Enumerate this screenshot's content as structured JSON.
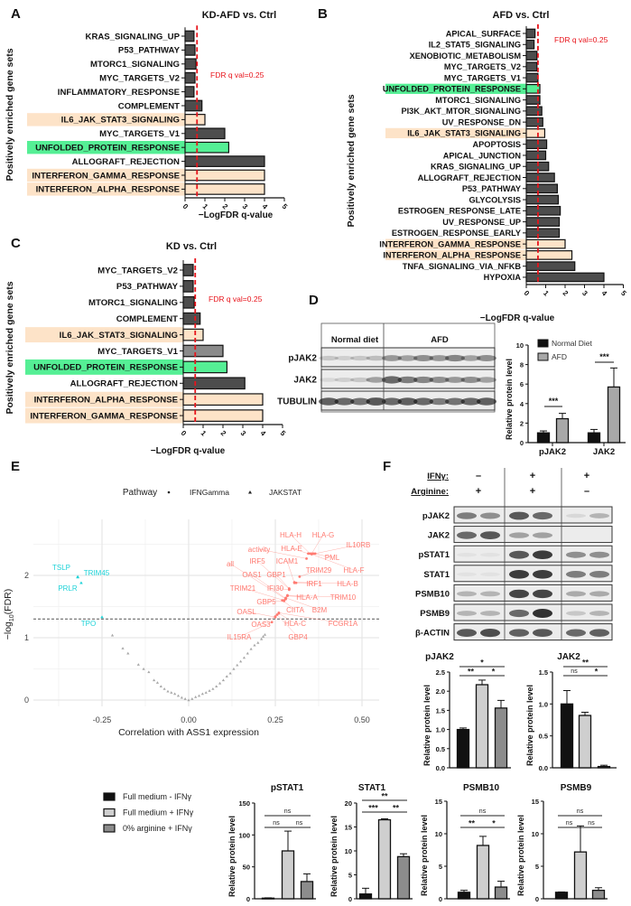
{
  "panel_labels": [
    "A",
    "B",
    "C",
    "D",
    "E",
    "F"
  ],
  "fdr_threshold_label": "FDR q val=0.25",
  "colors": {
    "bar": "#4d4d4d",
    "bar_light": "#8a8a8a",
    "highlight_orange": "#fde3c8",
    "highlight_green": "#55ef95",
    "threshold": "#e8141b",
    "ifng": "#ff7b72",
    "jakstat": "#1fd3d8",
    "gray_points": "#a8a8a8",
    "normal_diet": "#111111",
    "afd": "#a8a8a8",
    "f_group1": "#111111",
    "f_group2": "#cfcfcf",
    "f_group3": "#8c8c8c"
  },
  "chart_data": [
    {
      "id": "A",
      "type": "bar",
      "orientation": "horizontal",
      "title": "KD-AFD vs. Ctrl",
      "xlabel": "−LogFDR q-value",
      "ylabel": "Positively enriched gene sets",
      "xlim": [
        0,
        5
      ],
      "xticks": [
        "0",
        "1",
        "2",
        "3",
        "4",
        "5"
      ],
      "threshold": 0.602,
      "categories": [
        "KRAS_SIGNALING_UP",
        "P53_PATHWAY",
        "MTORC1_SIGNALING",
        "MYC_TARGETS_V2",
        "INFLAMMATORY_RESPONSE",
        "COMPLEMENT",
        "IL6_JAK_STAT3_SIGNALING",
        "MYC_TARGETS_V1",
        "UNFOLDED_PROTEIN_RESPONSE",
        "ALLOGRAFT_REJECTION",
        "INTERFERON_GAMMA_RESPONSE",
        "INTERFERON_ALPHA_RESPONSE"
      ],
      "values": [
        0.45,
        0.5,
        0.55,
        0.5,
        0.45,
        0.85,
        1.0,
        2.0,
        2.2,
        4.0,
        4.0,
        4.0
      ],
      "highlight": [
        "",
        "",
        "",
        "",
        "",
        "",
        "orange",
        "",
        "green",
        "",
        "orange",
        "orange"
      ]
    },
    {
      "id": "B",
      "type": "bar",
      "orientation": "horizontal",
      "title": "AFD vs. Ctrl",
      "xlabel": "−LogFDR q-value",
      "ylabel": "Positively enriched gene sets",
      "xlim": [
        0,
        5
      ],
      "xticks": [
        "0",
        "1",
        "2",
        "3",
        "4",
        "5"
      ],
      "threshold": 0.602,
      "categories": [
        "APICAL_SURFACE",
        "IL2_STAT5_SIGNALING",
        "XENOBIOTIC_METABOLISM",
        "MYC_TARGETS_V2",
        "MYC_TARGETS_V1",
        "UNFOLDED_PROTEIN_RESPONSE",
        "MTORC1_SIGNALING",
        "PI3K_AKT_MTOR_SIGNALING",
        "UV_RESPONSE_DN",
        "IL6_JAK_STAT3_SIGNALING",
        "APOPTOSIS",
        "APICAL_JUNCTION",
        "KRAS_SIGNALING_UP",
        "ALLOGRAFT_REJECTION",
        "P53_PATHWAY",
        "GLYCOLYSIS",
        "ESTROGEN_RESPONSE_LATE",
        "UV_RESPONSE_UP",
        "ESTROGEN_RESPONSE_EARLY",
        "INTERFERON_GAMMA_RESPONSE",
        "INTERFERON_ALPHA_RESPONSE",
        "TNFA_SIGNALING_VIA_NFKB",
        "HYPOXIA"
      ],
      "values": [
        0.45,
        0.4,
        0.55,
        0.55,
        0.6,
        0.7,
        0.7,
        0.8,
        0.85,
        0.95,
        1.05,
        1.0,
        1.15,
        1.45,
        1.6,
        1.65,
        1.75,
        1.7,
        1.7,
        2.0,
        2.35,
        2.5,
        4.0
      ],
      "highlight": [
        "",
        "",
        "",
        "",
        "",
        "green",
        "",
        "",
        "",
        "orange",
        "",
        "",
        "",
        "",
        "",
        "",
        "",
        "",
        "",
        "orange",
        "orange",
        "",
        ""
      ]
    },
    {
      "id": "C",
      "type": "bar",
      "orientation": "horizontal",
      "title": "KD vs. Ctrl",
      "xlabel": "−LogFDR q-value",
      "ylabel": "Positively enriched gene sets",
      "xlim": [
        0,
        5
      ],
      "xticks": [
        "0",
        "1",
        "2",
        "3",
        "4",
        "5"
      ],
      "threshold": 0.602,
      "categories": [
        "MYC_TARGETS_V2",
        "P53_PATHWAY",
        "MTORC1_SIGNALING",
        "COMPLEMENT",
        "IL6_JAK_STAT3_SIGNALING",
        "MYC_TARGETS_V1",
        "UNFOLDED_PROTEIN_RESPONSE",
        "ALLOGRAFT_REJECTION",
        "INTERFERON_ALPHA_RESPONSE",
        "INTERFERON_GAMMA_RESPONSE"
      ],
      "values": [
        0.5,
        0.5,
        0.55,
        0.85,
        1.0,
        2.0,
        2.2,
        3.1,
        4.0,
        4.0
      ],
      "highlight": [
        "",
        "",
        "",
        "",
        "orange",
        "light",
        "green",
        "",
        "orange",
        "orange"
      ]
    },
    {
      "id": "D",
      "type": "bar",
      "title": "",
      "ylabel": "Relative protein level",
      "categories": [
        "pJAK2",
        "JAK2"
      ],
      "ylim": [
        0,
        10
      ],
      "yticks": [
        "0",
        "2",
        "4",
        "6",
        "8",
        "10"
      ],
      "series": [
        {
          "name": "Normal Diet",
          "values": [
            1.0,
            1.0
          ],
          "errors": [
            0.2,
            0.35
          ]
        },
        {
          "name": "AFD",
          "values": [
            2.45,
            5.7
          ],
          "errors": [
            0.55,
            1.95
          ]
        }
      ],
      "significance": [
        {
          "category": "pJAK2",
          "label": "***"
        },
        {
          "category": "JAK2",
          "label": "***"
        }
      ]
    },
    {
      "id": "E",
      "type": "scatter",
      "xlabel": "Correlation with ASS1 expression",
      "ylabel_main": "−log",
      "ylabel_sub": "10",
      "ylabel_tail": "(FDR)",
      "legend_title": "Pathway",
      "legend": [
        "IFNGamma",
        "JAKSTAT"
      ],
      "xlim": [
        -0.4,
        0.55
      ],
      "ylim": [
        0,
        2.6
      ],
      "xticks": [
        "-0.25",
        "0.00",
        "0.25",
        "0.50"
      ],
      "xtick_values": [
        -0.25,
        0,
        0.25,
        0.5
      ],
      "yticks": [
        "0",
        "1",
        "2"
      ],
      "ytick_values": [
        0,
        1,
        2
      ],
      "threshold": 1.3,
      "labeled_points": [
        {
          "label": "TSLP",
          "x": -0.32,
          "y": 1.98,
          "pathway": "JAKSTAT"
        },
        {
          "label": "TRIM45",
          "x": -0.32,
          "y": 1.97,
          "pathway": "JAKSTAT"
        },
        {
          "label": "PRLR",
          "x": -0.31,
          "y": 1.88,
          "pathway": "JAKSTAT"
        },
        {
          "label": "TPO",
          "x": -0.25,
          "y": 1.33,
          "pathway": "JAKSTAT"
        },
        {
          "label": "HLA-H",
          "x": 0.35,
          "y": 2.35,
          "pathway": "IFNGamma"
        },
        {
          "label": "HLA-G",
          "x": 0.355,
          "y": 2.35,
          "pathway": "IFNGamma"
        },
        {
          "label": "IL10RB",
          "x": 0.365,
          "y": 2.35,
          "pathway": "IFNGamma"
        },
        {
          "label": "HLA-E",
          "x": 0.345,
          "y": 2.35,
          "pathway": "IFNGamma"
        },
        {
          "label": "PML",
          "x": 0.36,
          "y": 2.35,
          "pathway": "IFNGamma"
        },
        {
          "label": "HLA-F",
          "x": 0.355,
          "y": 2.34,
          "pathway": "IFNGamma"
        },
        {
          "label": "activity",
          "x": 0.34,
          "y": 2.27,
          "pathway": "IFNGamma"
        },
        {
          "label": "ICAM1",
          "x": 0.305,
          "y": 1.88,
          "pathway": "IFNGamma"
        },
        {
          "label": "IRF5",
          "x": 0.29,
          "y": 1.78,
          "pathway": "IFNGamma"
        },
        {
          "label": "all",
          "x": 0.28,
          "y": 1.62,
          "pathway": "IFNGamma"
        },
        {
          "label": "TRIM29",
          "x": 0.32,
          "y": 1.98,
          "pathway": "IFNGamma"
        },
        {
          "label": "GBP1",
          "x": 0.29,
          "y": 1.79,
          "pathway": "IFNGamma"
        },
        {
          "label": "OAS1",
          "x": 0.28,
          "y": 1.63,
          "pathway": "IFNGamma"
        },
        {
          "label": "IRF1",
          "x": 0.31,
          "y": 1.88,
          "pathway": "IFNGamma"
        },
        {
          "label": "HLA-B",
          "x": 0.305,
          "y": 1.89,
          "pathway": "IFNGamma"
        },
        {
          "label": "IFI30",
          "x": 0.29,
          "y": 1.77,
          "pathway": "IFNGamma"
        },
        {
          "label": "TRIM21",
          "x": 0.275,
          "y": 1.6,
          "pathway": "IFNGamma"
        },
        {
          "label": "TRIM10",
          "x": 0.285,
          "y": 1.68,
          "pathway": "IFNGamma"
        },
        {
          "label": "HLA-A",
          "x": 0.285,
          "y": 1.67,
          "pathway": "IFNGamma"
        },
        {
          "label": "GBP5",
          "x": 0.275,
          "y": 1.59,
          "pathway": "IFNGamma"
        },
        {
          "label": "CIITA",
          "x": 0.27,
          "y": 1.6,
          "pathway": "IFNGamma"
        },
        {
          "label": "B2M",
          "x": 0.28,
          "y": 1.64,
          "pathway": "IFNGamma"
        },
        {
          "label": "OASL",
          "x": 0.25,
          "y": 1.33,
          "pathway": "IFNGamma"
        },
        {
          "label": "FCGR1A",
          "x": 0.26,
          "y": 1.4,
          "pathway": "IFNGamma"
        },
        {
          "label": "HLA-C",
          "x": 0.26,
          "y": 1.39,
          "pathway": "IFNGamma"
        },
        {
          "label": "OAS3",
          "x": 0.25,
          "y": 1.34,
          "pathway": "IFNGamma"
        },
        {
          "label": "GBP4",
          "x": 0.255,
          "y": 1.37,
          "pathway": "IFNGamma"
        },
        {
          "label": "IL15RA",
          "x": 0.24,
          "y": 1.25,
          "pathway": "IFNGamma"
        }
      ],
      "other_points": {
        "x": [
          -0.22,
          -0.19,
          -0.175,
          -0.145,
          -0.13,
          -0.115,
          -0.1,
          -0.09,
          -0.08,
          -0.07,
          -0.06,
          -0.05,
          -0.04,
          -0.03,
          -0.02,
          -0.01,
          0.0,
          0.01,
          0.02,
          0.03,
          0.04,
          0.05,
          0.06,
          0.07,
          0.08,
          0.09,
          0.1,
          0.11,
          0.12,
          0.13,
          0.14,
          0.15,
          0.16,
          0.17,
          0.18,
          0.19,
          0.2,
          0.21,
          0.215,
          0.22
        ],
        "y": [
          1.04,
          0.83,
          0.75,
          0.57,
          0.5,
          0.45,
          0.32,
          0.28,
          0.22,
          0.18,
          0.14,
          0.12,
          0.1,
          0.07,
          0.04,
          0.02,
          0.0,
          0.02,
          0.05,
          0.07,
          0.1,
          0.12,
          0.15,
          0.18,
          0.22,
          0.27,
          0.32,
          0.38,
          0.43,
          0.5,
          0.56,
          0.62,
          0.68,
          0.75,
          0.82,
          0.88,
          0.92,
          0.98,
          1.02,
          1.05
        ]
      }
    },
    {
      "id": "F-pJAK2",
      "type": "bar",
      "title": "pJAK2",
      "ylabel": "Relative protein level",
      "ylim": [
        0,
        2.5
      ],
      "yticks": [
        "0.0",
        "0.5",
        "1.0",
        "1.5",
        "2.0",
        "2.5"
      ],
      "values": [
        1.0,
        2.17,
        1.56
      ],
      "errors": [
        0.04,
        0.12,
        0.2
      ],
      "significance": [
        {
          "pair": [
            0,
            1
          ],
          "label": "**"
        },
        {
          "pair": [
            1,
            2
          ],
          "label": "*"
        },
        {
          "pair": [
            0,
            2
          ],
          "label": "*"
        }
      ]
    },
    {
      "id": "F-JAK2",
      "type": "bar",
      "title": "JAK2",
      "ylabel": "Relative protein level",
      "ylim": [
        0,
        1.5
      ],
      "yticks": [
        "0.0",
        "0.5",
        "1.0",
        "1.5"
      ],
      "values": [
        1.0,
        0.82,
        0.02
      ],
      "errors": [
        0.21,
        0.05,
        0.02
      ],
      "significance": [
        {
          "pair": [
            0,
            1
          ],
          "label": "ns"
        },
        {
          "pair": [
            1,
            2
          ],
          "label": "*"
        },
        {
          "pair": [
            0,
            2
          ],
          "label": "**"
        }
      ]
    },
    {
      "id": "F-pSTAT1",
      "type": "bar",
      "title": "pSTAT1",
      "ylabel": "Relative protein level",
      "ylim": [
        0,
        150
      ],
      "yticks": [
        "0",
        "50",
        "100",
        "150"
      ],
      "values": [
        1,
        75,
        27
      ],
      "errors": [
        0.5,
        31,
        12
      ],
      "significance": [
        {
          "pair": [
            0,
            1
          ],
          "label": "ns"
        },
        {
          "pair": [
            1,
            2
          ],
          "label": "ns"
        },
        {
          "pair": [
            0,
            2
          ],
          "label": "ns"
        }
      ]
    },
    {
      "id": "F-STAT1",
      "type": "bar",
      "title": "STAT1",
      "ylabel": "Relative protein level",
      "ylim": [
        0,
        20
      ],
      "yticks": [
        "0",
        "5",
        "10",
        "15",
        "20"
      ],
      "values": [
        1,
        16.5,
        8.8
      ],
      "errors": [
        1.2,
        0.2,
        0.6
      ],
      "significance": [
        {
          "pair": [
            0,
            1
          ],
          "label": "***"
        },
        {
          "pair": [
            1,
            2
          ],
          "label": "**"
        },
        {
          "pair": [
            0,
            2
          ],
          "label": "**"
        }
      ]
    },
    {
      "id": "F-PSMB10",
      "type": "bar",
      "title": "PSMB10",
      "ylabel": "Relative protein level",
      "ylim": [
        0,
        15
      ],
      "yticks": [
        "0",
        "5",
        "10",
        "15"
      ],
      "values": [
        1,
        8.2,
        1.8
      ],
      "errors": [
        0.3,
        1.4,
        0.9
      ],
      "significance": [
        {
          "pair": [
            0,
            1
          ],
          "label": "**"
        },
        {
          "pair": [
            1,
            2
          ],
          "label": "*"
        },
        {
          "pair": [
            0,
            2
          ],
          "label": "ns"
        }
      ]
    },
    {
      "id": "F-PSMB9",
      "type": "bar",
      "title": "PSMB9",
      "ylabel": "Relative protein level",
      "ylim": [
        0,
        15
      ],
      "yticks": [
        "0",
        "5",
        "10",
        "15"
      ],
      "values": [
        1,
        7.2,
        1.3
      ],
      "errors": [
        0.05,
        4.0,
        0.4
      ],
      "significance": [
        {
          "pair": [
            0,
            1
          ],
          "label": "ns"
        },
        {
          "pair": [
            1,
            2
          ],
          "label": "ns"
        },
        {
          "pair": [
            0,
            2
          ],
          "label": "ns"
        }
      ]
    }
  ],
  "f_legend": [
    "Full medium - IFNγ",
    "Full medium + IFNγ",
    "0% arginine + IFNγ"
  ],
  "blots": {
    "D": {
      "groups": [
        "Normal diet",
        "AFD"
      ],
      "rows": [
        "pJAK2",
        "JAK2",
        "TUBULIN"
      ]
    },
    "F": {
      "conditions": [
        {
          "label": "IFNγ:",
          "values": [
            "–",
            "+",
            "+"
          ]
        },
        {
          "label": "Arginine:",
          "values": [
            "+",
            "+",
            "–"
          ]
        }
      ],
      "rows": [
        "pJAK2",
        "JAK2",
        "pSTAT1",
        "STAT1",
        "PSMB10",
        "PSMB9",
        "β-ACTIN"
      ]
    }
  }
}
